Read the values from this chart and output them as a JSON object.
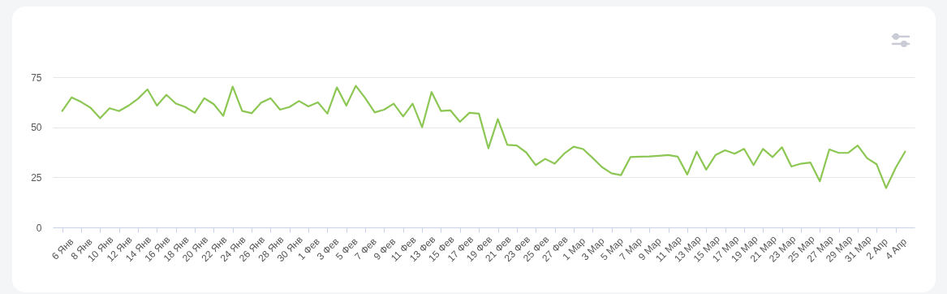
{
  "chart_data": {
    "type": "line",
    "categories": [
      "6 Янв",
      null,
      "8 Янв",
      null,
      "10 Янв",
      null,
      "12 Янв",
      null,
      "14 Янв",
      null,
      "16 Янв",
      null,
      "18 Янв",
      null,
      "20 Янв",
      null,
      "22 Янв",
      null,
      "24 Янв",
      null,
      "26 Янв",
      null,
      "28 Янв",
      null,
      "30 Янв",
      null,
      "1 Фев",
      null,
      "3 Фев",
      null,
      "5 Фев",
      null,
      "7 Фев",
      null,
      "9 Фев",
      null,
      "11 Фев",
      null,
      "13 Фев",
      null,
      "15 Фев",
      null,
      "17 Фев",
      null,
      "19 Фев",
      null,
      "21 Фев",
      null,
      "23 Фев",
      null,
      "25 Фев",
      null,
      "27 Фев",
      null,
      "1 Мар",
      null,
      "3 Мар",
      null,
      "5 Мар",
      null,
      "7 Мар",
      null,
      "9 Мар",
      null,
      "11 Мар",
      null,
      "13 Мар",
      null,
      "15 Мар",
      null,
      "17 Мар",
      null,
      "19 Мар",
      null,
      "21 Мар",
      null,
      "23 Мар",
      null,
      "25 Мар",
      null,
      "27 Мар",
      null,
      "29 Мар",
      null,
      "31 Мар",
      null,
      "2 Апр",
      null,
      "4 Апр",
      null
    ],
    "series": [
      {
        "color": "#8cc653",
        "values": [
          58.1,
          64.9,
          62.6,
          59.7,
          54.5,
          59.5,
          58.1,
          60.8,
          64.2,
          68.9,
          60.8,
          66.2,
          61.8,
          60.1,
          57.2,
          64.5,
          61.5,
          55.7,
          70.3,
          58.1,
          57.0,
          62.2,
          64.5,
          58.8,
          60.1,
          63.1,
          60.4,
          62.4,
          56.8,
          69.9,
          60.8,
          70.7,
          64.5,
          57.4,
          58.8,
          61.8,
          55.4,
          61.8,
          50.0,
          67.6,
          58.1,
          58.4,
          52.7,
          57.2,
          56.8,
          39.5,
          54.1,
          41.2,
          40.9,
          37.4,
          31.1,
          34.2,
          31.8,
          36.8,
          40.3,
          39.1,
          34.7,
          30.1,
          27.0,
          26.1,
          35.1,
          35.3,
          35.4,
          35.7,
          36.1,
          35.3,
          26.4,
          37.8,
          28.8,
          36.2,
          38.5,
          36.8,
          39.2,
          31.1,
          39.2,
          35.1,
          40.0,
          30.4,
          31.8,
          32.4,
          23.0,
          38.9,
          37.2,
          37.2,
          40.9,
          34.5,
          31.5,
          19.6,
          29.7,
          37.8
        ]
      }
    ],
    "ylim": [
      0,
      75
    ],
    "yticks": [
      0,
      25,
      50,
      75
    ],
    "grid": "y",
    "marker": "none",
    "line_style": "solid"
  }
}
